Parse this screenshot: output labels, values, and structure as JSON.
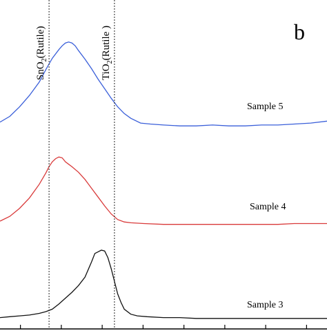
{
  "chart_data": {
    "type": "line",
    "panel_label": "b",
    "xlabel": "",
    "ylabel": "",
    "xlim": [
      0,
      100
    ],
    "reference_lines": [
      {
        "x": 15,
        "label_main": "SnO",
        "label_sub": "2",
        "label_tail": "(Rutile)"
      },
      {
        "x": 35,
        "label_main": "TiO",
        "label_sub": "2",
        "label_tail": "(Rutile )"
      }
    ],
    "series": [
      {
        "name": "Sample 5",
        "color": "#3a5fd9",
        "x": [
          0,
          3,
          6,
          9,
          12,
          14,
          16,
          18,
          19,
          20,
          21,
          22,
          23,
          24,
          26,
          28,
          30,
          32,
          34,
          36,
          38,
          40,
          43,
          46,
          50,
          55,
          60,
          65,
          70,
          75,
          80,
          85,
          90,
          95,
          100
        ],
        "y": [
          0.06,
          0.12,
          0.22,
          0.34,
          0.48,
          0.61,
          0.73,
          0.82,
          0.86,
          0.89,
          0.9,
          0.89,
          0.86,
          0.81,
          0.72,
          0.62,
          0.51,
          0.41,
          0.31,
          0.22,
          0.15,
          0.1,
          0.05,
          0.04,
          0.03,
          0.02,
          0.02,
          0.03,
          0.02,
          0.02,
          0.03,
          0.03,
          0.04,
          0.05,
          0.07
        ]
      },
      {
        "name": "Sample 4",
        "color": "#d93a3a",
        "x": [
          0,
          3,
          6,
          9,
          12,
          14,
          15,
          16,
          17,
          18,
          19,
          20,
          21,
          22,
          24,
          26,
          28,
          30,
          32,
          34,
          36,
          38,
          40,
          44,
          50,
          55,
          60,
          65,
          70,
          75,
          80,
          85,
          90,
          95,
          100
        ],
        "y": [
          0.06,
          0.12,
          0.22,
          0.35,
          0.52,
          0.66,
          0.74,
          0.8,
          0.84,
          0.86,
          0.85,
          0.8,
          0.77,
          0.74,
          0.67,
          0.58,
          0.47,
          0.36,
          0.25,
          0.15,
          0.08,
          0.05,
          0.04,
          0.03,
          0.02,
          0.02,
          0.02,
          0.02,
          0.02,
          0.02,
          0.02,
          0.02,
          0.03,
          0.03,
          0.03
        ]
      },
      {
        "name": "Sample 3",
        "color": "#111111",
        "x": [
          0,
          3,
          6,
          9,
          12,
          14,
          16,
          18,
          20,
          22,
          24,
          26,
          28,
          29,
          30,
          31,
          32,
          33,
          34,
          35,
          36,
          37,
          38,
          40,
          42,
          45,
          50,
          55,
          60,
          65,
          70,
          75,
          80,
          85,
          90,
          95,
          100
        ],
        "y": [
          0.02,
          0.03,
          0.04,
          0.05,
          0.07,
          0.09,
          0.12,
          0.18,
          0.25,
          0.32,
          0.4,
          0.5,
          0.68,
          0.78,
          0.8,
          0.82,
          0.81,
          0.73,
          0.6,
          0.45,
          0.3,
          0.2,
          0.12,
          0.06,
          0.04,
          0.03,
          0.02,
          0.02,
          0.01,
          0.01,
          0.01,
          0.01,
          0.01,
          0.01,
          0.01,
          0.01,
          0.01
        ]
      }
    ],
    "x_tick_count": 8,
    "grid": false,
    "legend": "none"
  }
}
